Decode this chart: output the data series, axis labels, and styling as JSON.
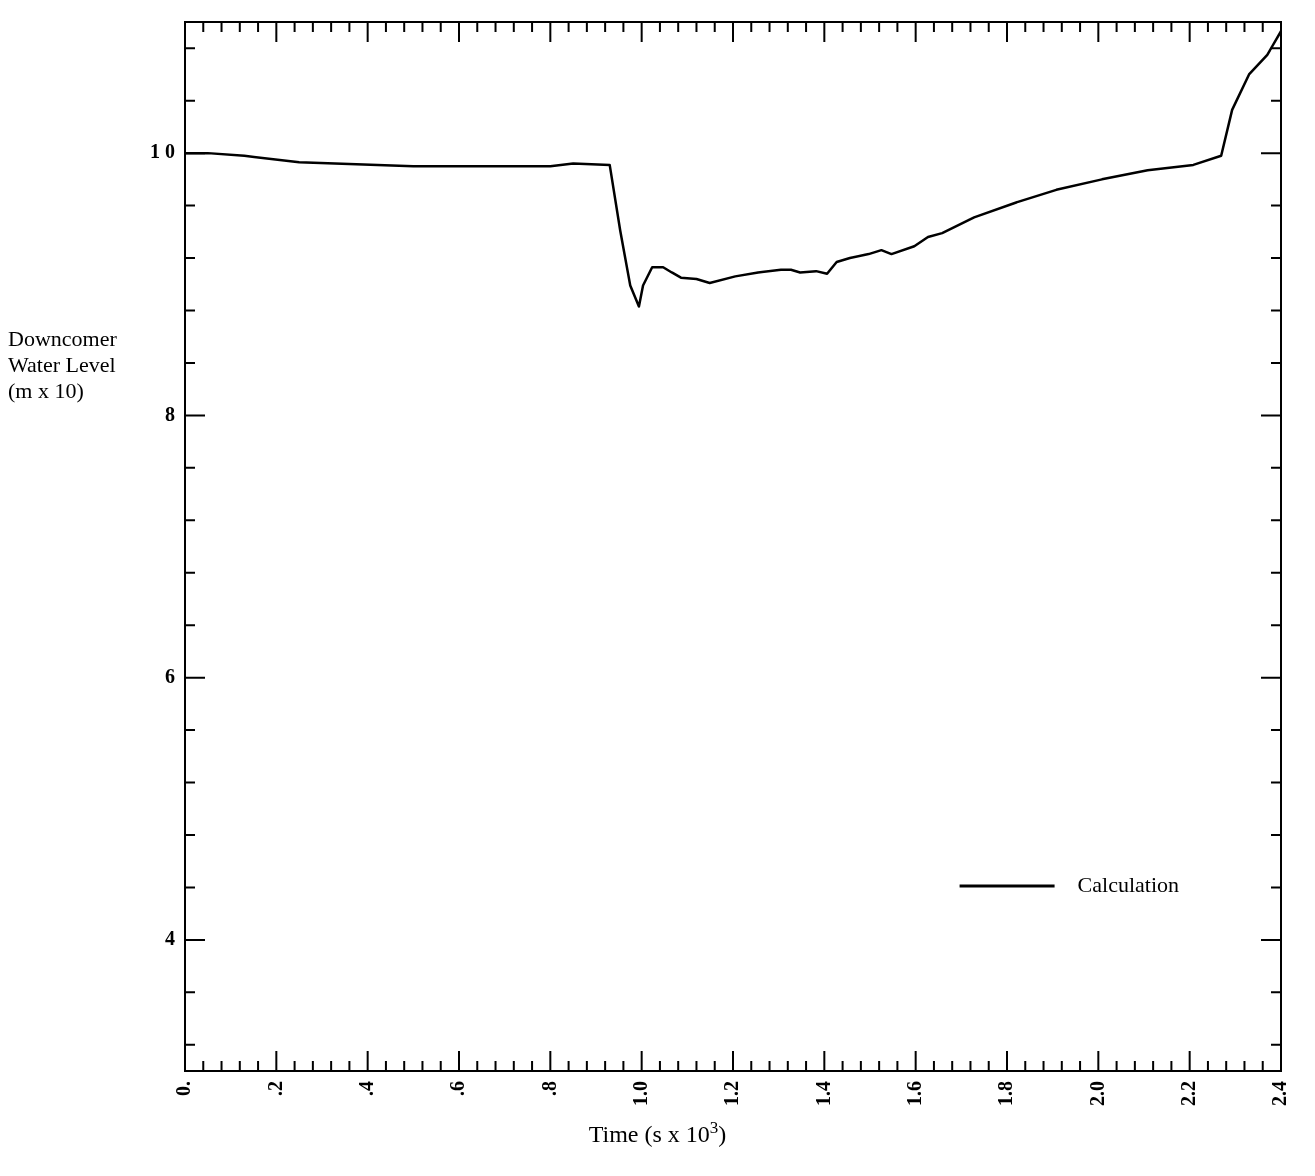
{
  "chart_data": {
    "type": "line",
    "xlabel": "Time (s x 10$^{3}$)",
    "ylabel": "Downcomer\nWater Level\n(m x 10)",
    "xlim": [
      0,
      2.4
    ],
    "ylim": [
      3,
      11
    ],
    "xticks": [
      {
        "value": 0,
        "label": "0."
      },
      {
        "value": 0.04,
        "label": null
      },
      {
        "value": 0.08,
        "label": null
      },
      {
        "value": 0.12,
        "label": null
      },
      {
        "value": 0.16,
        "label": null
      },
      {
        "value": 0.2,
        "label": ".2"
      },
      {
        "value": 0.24,
        "label": null
      },
      {
        "value": 0.28,
        "label": null
      },
      {
        "value": 0.32,
        "label": null
      },
      {
        "value": 0.36,
        "label": null
      },
      {
        "value": 0.4,
        "label": ".4"
      },
      {
        "value": 0.44,
        "label": null
      },
      {
        "value": 0.48,
        "label": null
      },
      {
        "value": 0.52,
        "label": null
      },
      {
        "value": 0.56,
        "label": null
      },
      {
        "value": 0.6,
        "label": ".6"
      },
      {
        "value": 0.64,
        "label": null
      },
      {
        "value": 0.68,
        "label": null
      },
      {
        "value": 0.72,
        "label": null
      },
      {
        "value": 0.76,
        "label": null
      },
      {
        "value": 0.8,
        "label": ".8"
      },
      {
        "value": 0.84,
        "label": null
      },
      {
        "value": 0.88,
        "label": null
      },
      {
        "value": 0.92,
        "label": null
      },
      {
        "value": 0.96,
        "label": null
      },
      {
        "value": 1.0,
        "label": "1.0"
      },
      {
        "value": 1.04,
        "label": null
      },
      {
        "value": 1.08,
        "label": null
      },
      {
        "value": 1.12,
        "label": null
      },
      {
        "value": 1.16,
        "label": null
      },
      {
        "value": 1.2,
        "label": "1.2"
      },
      {
        "value": 1.24,
        "label": null
      },
      {
        "value": 1.28,
        "label": null
      },
      {
        "value": 1.32,
        "label": null
      },
      {
        "value": 1.36,
        "label": null
      },
      {
        "value": 1.4,
        "label": "1.4"
      },
      {
        "value": 1.44,
        "label": null
      },
      {
        "value": 1.48,
        "label": null
      },
      {
        "value": 1.52,
        "label": null
      },
      {
        "value": 1.56,
        "label": null
      },
      {
        "value": 1.6,
        "label": "1.6"
      },
      {
        "value": 1.64,
        "label": null
      },
      {
        "value": 1.68,
        "label": null
      },
      {
        "value": 1.72,
        "label": null
      },
      {
        "value": 1.76,
        "label": null
      },
      {
        "value": 1.8,
        "label": "1.8"
      },
      {
        "value": 1.84,
        "label": null
      },
      {
        "value": 1.88,
        "label": null
      },
      {
        "value": 1.92,
        "label": null
      },
      {
        "value": 1.96,
        "label": null
      },
      {
        "value": 2.0,
        "label": "2.0"
      },
      {
        "value": 2.04,
        "label": null
      },
      {
        "value": 2.08,
        "label": null
      },
      {
        "value": 2.12,
        "label": null
      },
      {
        "value": 2.16,
        "label": null
      },
      {
        "value": 2.2,
        "label": "2.2"
      },
      {
        "value": 2.24,
        "label": null
      },
      {
        "value": 2.28,
        "label": null
      },
      {
        "value": 2.32,
        "label": null
      },
      {
        "value": 2.36,
        "label": null
      },
      {
        "value": 2.4,
        "label": "2.4"
      }
    ],
    "yticks": [
      {
        "value": 3.2,
        "label": null
      },
      {
        "value": 3.6,
        "label": null
      },
      4,
      {
        "value": 4.4,
        "label": null
      },
      {
        "value": 4.8,
        "label": null
      },
      {
        "value": 5.2,
        "label": null
      },
      {
        "value": 5.6,
        "label": null
      },
      6,
      {
        "value": 6.4,
        "label": null
      },
      {
        "value": 6.8,
        "label": null
      },
      {
        "value": 7.2,
        "label": null
      },
      {
        "value": 7.6,
        "label": null
      },
      8,
      {
        "value": 8.4,
        "label": null
      },
      {
        "value": 8.8,
        "label": null
      },
      {
        "value": 9.2,
        "label": null
      },
      {
        "value": 9.6,
        "label": null
      },
      {
        "value": 10,
        "label": "1 0"
      },
      {
        "value": 10.4,
        "label": null
      },
      {
        "value": 10.8,
        "label": null
      }
    ],
    "grid": false,
    "legend": "bottom right",
    "marker": "none",
    "line_style": "solid",
    "series": [
      {
        "name": "Calculation",
        "color": "#000000",
        "x": [
          0,
          0.05,
          0.13,
          0.25,
          0.5,
          0.8,
          0.85,
          0.93,
          0.953,
          0.975,
          0.994,
          1.003,
          1.023,
          1.047,
          1.066,
          1.086,
          1.12,
          1.149,
          1.205,
          1.255,
          1.305,
          1.327,
          1.347,
          1.382,
          1.406,
          1.427,
          1.456,
          1.497,
          1.525,
          1.547,
          1.597,
          1.627,
          1.658,
          1.728,
          1.817,
          1.908,
          2.008,
          2.108,
          2.208,
          2.269,
          2.293,
          2.33,
          2.37,
          2.4
        ],
        "values": [
          10.0,
          10.0,
          9.98,
          9.93,
          9.9,
          9.9,
          9.92,
          9.91,
          9.41,
          8.99,
          8.83,
          8.99,
          9.13,
          9.13,
          9.09,
          9.05,
          9.04,
          9.01,
          9.06,
          9.09,
          9.11,
          9.11,
          9.09,
          9.1,
          9.08,
          9.17,
          9.2,
          9.23,
          9.26,
          9.23,
          9.29,
          9.36,
          9.39,
          9.51,
          9.62,
          9.72,
          9.8,
          9.87,
          9.91,
          9.98,
          10.33,
          10.6,
          10.75,
          10.93
        ]
      }
    ]
  }
}
